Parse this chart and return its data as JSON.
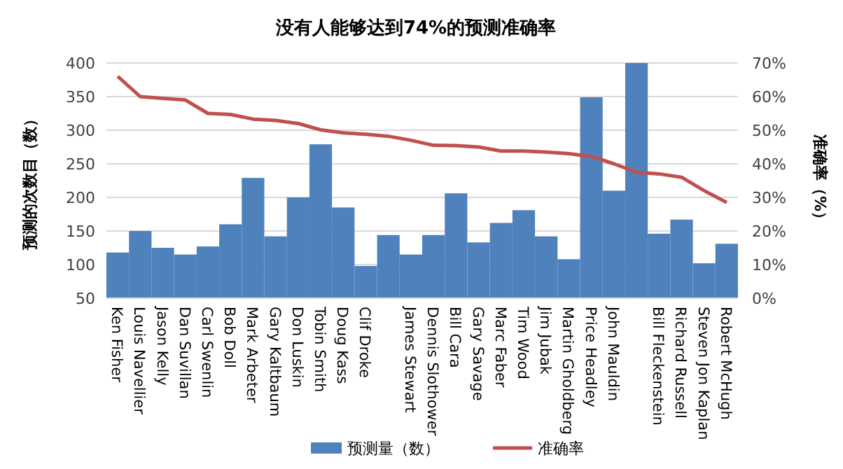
{
  "chart_data": {
    "type": "bar",
    "title": "没有人能够达到74%的预测准确率",
    "ylabel": "预测的次数目（数）",
    "y2label": "准确率（%）",
    "categories": [
      "Ken Fisher",
      "Louis Navellier",
      "Jason Kelly",
      "Dan Suvillan",
      "Carl Swenlin",
      "Bob Doll",
      "Mark Arbeter",
      "Gary Kaltbaum",
      "Don Luskin",
      "Tobin Smith",
      "Doug Kass",
      "Clif Droke",
      null,
      "James Stewart",
      "Dennis Slothower",
      "Bill Cara",
      "Gary Savage",
      "Marc Faber",
      "Tim Wood",
      "Jim Jubak",
      "Martin Gholdberg",
      "Price Headley",
      "John Mauldin",
      null,
      "Bill Fleckenstein",
      "Richard Russell",
      "Steven Jon Kaplan",
      "Robert McHugh"
    ],
    "series": [
      {
        "name": "预测量（数）",
        "color": "#4f81bd",
        "values": [
          118,
          150,
          125,
          115,
          127,
          160,
          229,
          142,
          200,
          279,
          185,
          98,
          144,
          115,
          144,
          206,
          133,
          162,
          181,
          142,
          108,
          349,
          210,
          400,
          146,
          167,
          102,
          131
        ]
      },
      {
        "name": "准确率",
        "type": "line",
        "axis": "y2",
        "color": "#c0504d",
        "values": [
          66,
          60,
          59.5,
          59,
          55,
          54.7,
          53.3,
          52.9,
          52,
          50.1,
          49.2,
          48.8,
          48.2,
          47,
          45.5,
          45.4,
          45,
          43.8,
          43.8,
          43.5,
          43,
          42.2,
          40,
          37.5,
          37,
          36,
          32,
          28.5
        ]
      }
    ],
    "ylim": [
      50,
      400
    ],
    "yticks": [
      50,
      100,
      150,
      200,
      250,
      300,
      350,
      400
    ],
    "y2lim": [
      0,
      70
    ],
    "y2ticks": [
      {
        "value": 0,
        "label": "0%"
      },
      {
        "value": 10,
        "label": "10%"
      },
      {
        "value": 20,
        "label": "20%"
      },
      {
        "value": 30,
        "label": "30%"
      },
      {
        "value": 40,
        "label": "40%"
      },
      {
        "value": 50,
        "label": "50%"
      },
      {
        "value": 60,
        "label": "60%"
      },
      {
        "value": 70,
        "label": "70%"
      }
    ],
    "grid": "y",
    "legend": "bottom"
  }
}
